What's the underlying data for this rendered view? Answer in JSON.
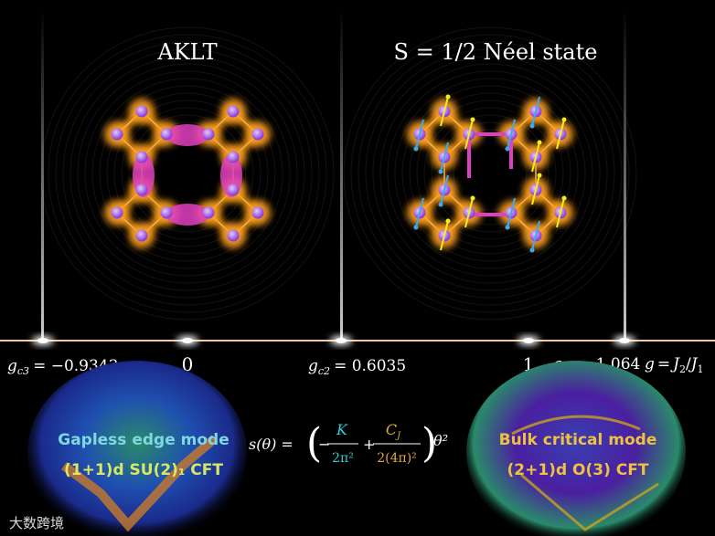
{
  "panels": [
    {
      "title": "AKLT"
    },
    {
      "title": "S = 1/2 Néel state"
    }
  ],
  "axis": {
    "points": [
      {
        "symbol": "g",
        "sub": "c3",
        "value": "= −0.9343"
      },
      {
        "value": "0"
      },
      {
        "symbol": "g",
        "sub": "c2",
        "value": "= 0.6035"
      },
      {
        "value": "1"
      },
      {
        "symbol": "g",
        "sub": "c1",
        "value": "= 1.064"
      }
    ],
    "variable": {
      "symbol": "g",
      "eq": "=",
      "num": "J",
      "num_sub": "2",
      "slash": "/",
      "den": "J",
      "den_sub": "1"
    }
  },
  "formula": {
    "lhs": "s(θ) =",
    "minus": "−",
    "num1": "K",
    "den1": "2π²",
    "plus": "+",
    "num2": "C",
    "num2_sub": "J",
    "den2": "2(4π)²",
    "tail": "θ²"
  },
  "left_box": {
    "line1": "Gapless edge mode",
    "line2": "(1+1)d SU(2)₁ CFT"
  },
  "right_box": {
    "line1": "Bulk critical mode",
    "line2": "(2+1)d O(3) CFT"
  },
  "watermark": "大数跨境"
}
